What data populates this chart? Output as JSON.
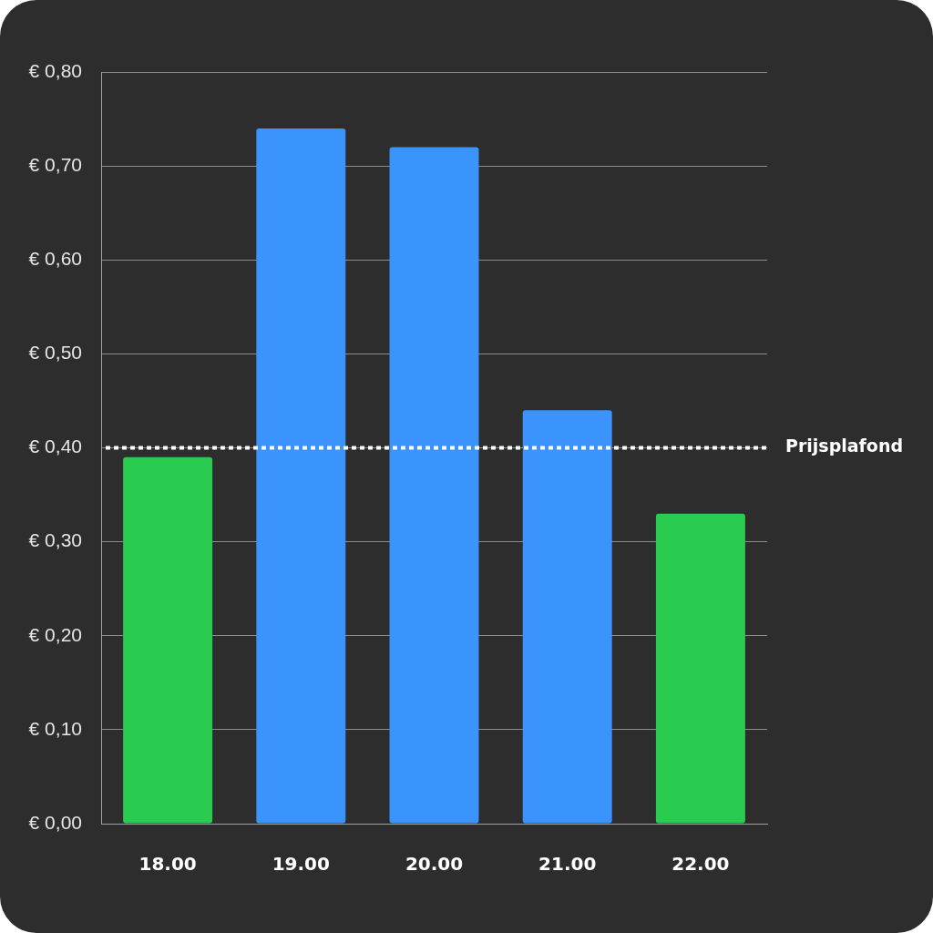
{
  "chart_data": {
    "type": "bar",
    "categories": [
      "18.00",
      "19.00",
      "20.00",
      "21.00",
      "22.00"
    ],
    "values": [
      0.39,
      0.74,
      0.72,
      0.44,
      0.33
    ],
    "colors": [
      "#29cc4e",
      "#3a94fc",
      "#3a94fc",
      "#3a94fc",
      "#29cc4e"
    ],
    "ylim": [
      0,
      0.8
    ],
    "yticks": [
      {
        "value": 0,
        "label": "€ 0,00"
      },
      {
        "value": 0.1,
        "label": "€ 0,10"
      },
      {
        "value": 0.2,
        "label": "€ 0,20"
      },
      {
        "value": 0.3,
        "label": "€ 0,30"
      },
      {
        "value": 0.4,
        "label": "€ 0,40"
      },
      {
        "value": 0.5,
        "label": "€ 0,50"
      },
      {
        "value": 0.6,
        "label": "€ 0,60"
      },
      {
        "value": 0.7,
        "label": "€ 0,70"
      },
      {
        "value": 0.8,
        "label": "€ 0,80"
      }
    ],
    "grid": "y",
    "ref_lines": [
      {
        "axis": "y",
        "value": 0.4,
        "label": "Prijsplafond",
        "color": "#ffffff",
        "line_style": "dotted"
      }
    ]
  }
}
